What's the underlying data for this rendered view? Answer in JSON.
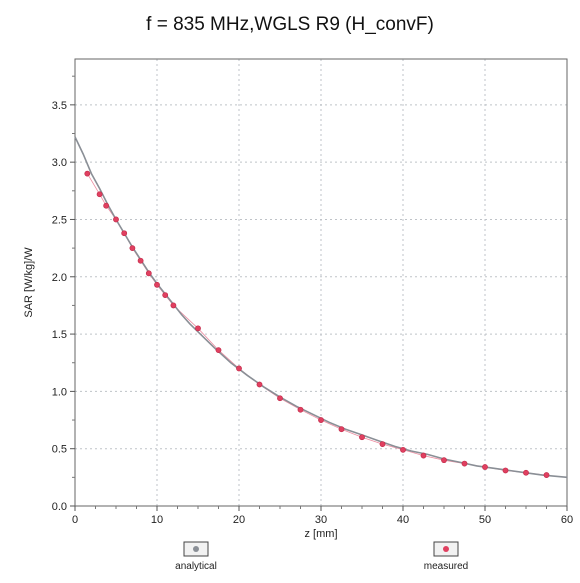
{
  "chart_data": {
    "type": "scatter",
    "title": "f = 835 MHz,WGLS R9 (H_convF)",
    "xlabel": "z [mm]",
    "ylabel": "SAR [W/kg]/W",
    "xlim": [
      0,
      60
    ],
    "ylim": [
      0,
      3.9
    ],
    "x_ticks": [
      "0",
      "10",
      "20",
      "30",
      "40",
      "50",
      "60"
    ],
    "y_ticks": [
      "0.0",
      "0.5",
      "1.0",
      "1.5",
      "2.0",
      "2.5",
      "3.0",
      "3.5"
    ],
    "grid": true,
    "legend_position": "bottom",
    "series": [
      {
        "name": "analytical",
        "type": "line",
        "color": "#8a8f96",
        "x": [
          0,
          1,
          2,
          3,
          4,
          5,
          6,
          7,
          8,
          9,
          10,
          11,
          12,
          13,
          14,
          15,
          17,
          19,
          21,
          23,
          25,
          27,
          29,
          31,
          33,
          35,
          37,
          39,
          41,
          43,
          45,
          47,
          49,
          51,
          53,
          55,
          57,
          60
        ],
        "y": [
          3.22,
          3.07,
          2.9,
          2.77,
          2.63,
          2.5,
          2.38,
          2.26,
          2.15,
          2.04,
          1.94,
          1.85,
          1.76,
          1.67,
          1.59,
          1.52,
          1.38,
          1.25,
          1.14,
          1.04,
          0.95,
          0.87,
          0.8,
          0.73,
          0.67,
          0.62,
          0.57,
          0.52,
          0.48,
          0.45,
          0.41,
          0.38,
          0.35,
          0.33,
          0.31,
          0.29,
          0.27,
          0.25
        ]
      },
      {
        "name": "measured",
        "type": "scatter",
        "color": "#e04060",
        "x": [
          1.5,
          3,
          3.8,
          5,
          6,
          7,
          8,
          9,
          10,
          11,
          12,
          15,
          17.5,
          20,
          22.5,
          25,
          27.5,
          30,
          32.5,
          35,
          37.5,
          40,
          42.5,
          45,
          47.5,
          50,
          52.5,
          55,
          57.5
        ],
        "y": [
          2.9,
          2.72,
          2.62,
          2.5,
          2.38,
          2.25,
          2.14,
          2.03,
          1.93,
          1.84,
          1.75,
          1.55,
          1.36,
          1.2,
          1.06,
          0.94,
          0.84,
          0.75,
          0.67,
          0.6,
          0.54,
          0.49,
          0.44,
          0.4,
          0.37,
          0.34,
          0.31,
          0.29,
          0.27
        ]
      }
    ]
  }
}
